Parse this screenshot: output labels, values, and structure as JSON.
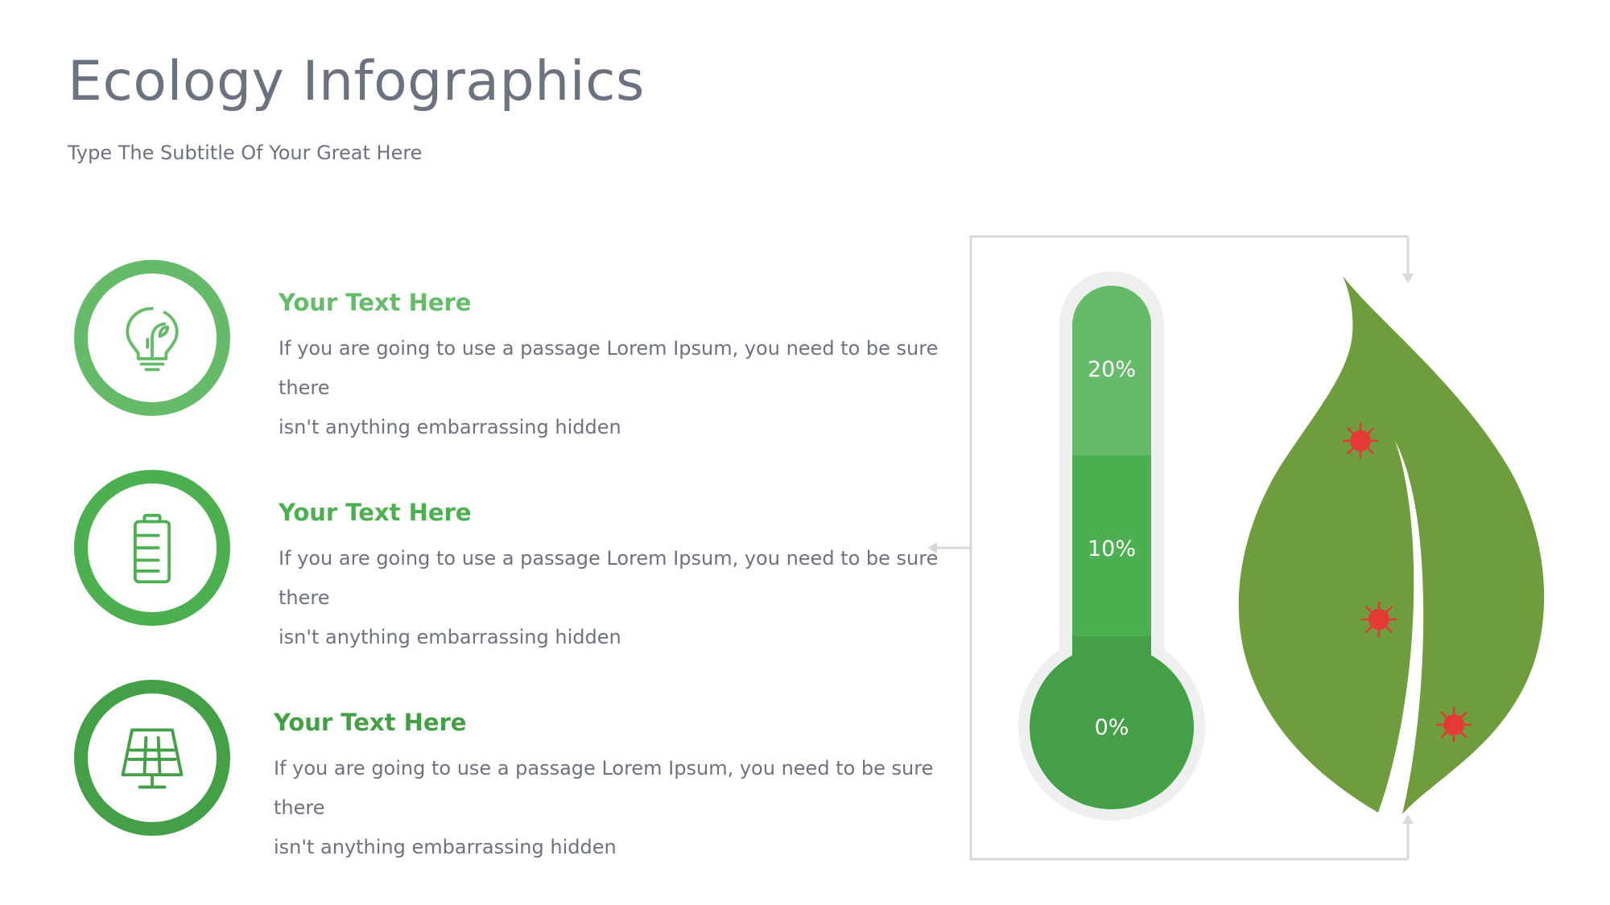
{
  "title": "Ecology Infographics",
  "subtitle": "Type The Subtitle Of Your Great Here",
  "colors": {
    "green_light": "#66bb6a",
    "green_mid": "#4caf50",
    "green_dark": "#43a047",
    "leaf": "#6f9c3d",
    "virus": "#e53935",
    "frame": "#d9d9d9",
    "tube_bg": "#eef0ef"
  },
  "items": [
    {
      "icon": "lightbulb-leaf-icon",
      "heading": "Your Text Here",
      "line1": "If you are going to use a passage Lorem Ipsum, you need to be sure there",
      "line2": "isn't anything embarrassing hidden"
    },
    {
      "icon": "battery-icon",
      "heading": "Your Text Here",
      "line1": "If you are going to use a passage Lorem Ipsum, you need to be sure there",
      "line2": "isn't anything embarrassing hidden"
    },
    {
      "icon": "solar-panel-icon",
      "heading": "Your Text Here",
      "line1": "If you are going to use a passage Lorem Ipsum, you need to be sure there",
      "line2": "isn't anything embarrassing hidden"
    }
  ],
  "thermometer": {
    "levels": [
      {
        "label": "20%",
        "value": 20
      },
      {
        "label": "10%",
        "value": 10
      },
      {
        "label": "0%",
        "value": 0
      }
    ]
  },
  "leaf": {
    "viruses": 3
  }
}
